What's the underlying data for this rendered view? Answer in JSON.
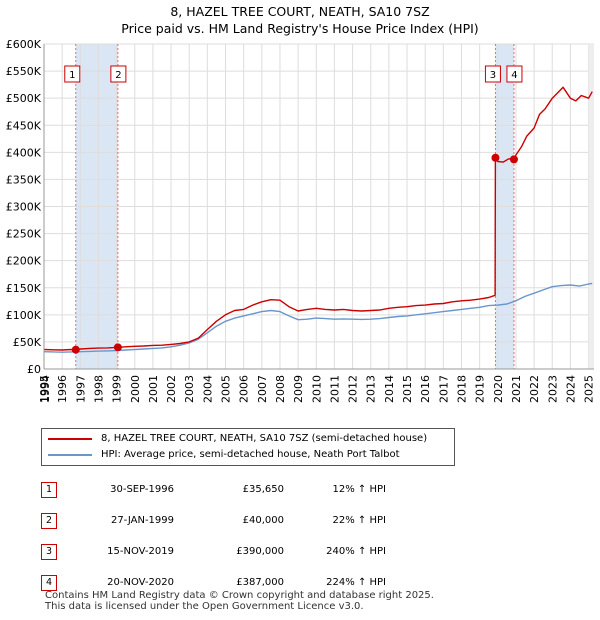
{
  "title_line1": "8, HAZEL TREE COURT, NEATH, SA10 7SZ",
  "title_line2": "Price paid vs. HM Land Registry's House Price Index (HPI)",
  "colors": {
    "property": "#cc0000",
    "hpi": "#6a96cc",
    "shade": "#dbe6f5",
    "vline": "#e07070",
    "grid": "#dddddd"
  },
  "chart_data": {
    "type": "line",
    "x_range": [
      1995.0,
      2025.3
    ],
    "ylim": [
      0,
      600000
    ],
    "y_ticks": [
      0,
      50000,
      100000,
      150000,
      200000,
      250000,
      300000,
      350000,
      400000,
      450000,
      500000,
      550000,
      600000
    ],
    "y_tick_labels": [
      "£0",
      "£50K",
      "£100K",
      "£150K",
      "£200K",
      "£250K",
      "£300K",
      "£350K",
      "£400K",
      "£450K",
      "£500K",
      "£550K",
      "£600K"
    ],
    "x_ticks": [
      1994,
      1995,
      1996,
      1997,
      1998,
      1999,
      2000,
      2001,
      2002,
      2003,
      2004,
      2005,
      2006,
      2007,
      2008,
      2009,
      2010,
      2011,
      2012,
      2013,
      2014,
      2015,
      2016,
      2017,
      2018,
      2019,
      2020,
      2021,
      2022,
      2023,
      2024,
      2025
    ],
    "shaded_spans": [
      [
        1996.75,
        1999.07
      ],
      [
        2019.87,
        2020.89
      ]
    ],
    "series": [
      {
        "name": "8, HAZEL TREE COURT, NEATH, SA10 7SZ (semi-detached house)",
        "x": [
          1995.0,
          1995.5,
          1996.0,
          1996.5,
          1996.75,
          1997.0,
          1997.5,
          1998.0,
          1998.5,
          1999.07,
          1999.5,
          2000.0,
          2000.5,
          2001.0,
          2001.5,
          2002.0,
          2002.5,
          2003.0,
          2003.5,
          2004.0,
          2004.5,
          2005.0,
          2005.5,
          2006.0,
          2006.5,
          2007.0,
          2007.5,
          2008.0,
          2008.5,
          2009.0,
          2009.5,
          2010.0,
          2010.5,
          2011.0,
          2011.5,
          2012.0,
          2012.5,
          2013.0,
          2013.5,
          2014.0,
          2014.5,
          2015.0,
          2015.5,
          2016.0,
          2016.5,
          2017.0,
          2017.5,
          2018.0,
          2018.5,
          2019.0,
          2019.5,
          2019.85,
          2019.87,
          2020.0,
          2020.3,
          2020.6,
          2020.89,
          2021.0,
          2021.3,
          2021.6,
          2022.0,
          2022.3,
          2022.6,
          2023.0,
          2023.3,
          2023.6,
          2024.0,
          2024.3,
          2024.6,
          2025.0,
          2025.2
        ],
        "values": [
          36000,
          35500,
          35000,
          36000,
          35650,
          37000,
          38000,
          38500,
          39000,
          40000,
          41000,
          42000,
          42500,
          43500,
          44000,
          45500,
          47000,
          50000,
          57000,
          73000,
          88000,
          100000,
          108000,
          110000,
          118000,
          124000,
          128000,
          127000,
          115000,
          107000,
          110000,
          112000,
          110000,
          109000,
          110000,
          108000,
          107000,
          108000,
          109000,
          112000,
          114000,
          115000,
          117000,
          118000,
          120000,
          121000,
          124000,
          126000,
          127000,
          129000,
          132000,
          136000,
          390000,
          383000,
          382000,
          388000,
          387000,
          395000,
          410000,
          430000,
          445000,
          470000,
          480000,
          500000,
          510000,
          520000,
          500000,
          495000,
          505000,
          500000,
          512000
        ]
      },
      {
        "name": "HPI: Average price, semi-detached house, Neath Port Talbot",
        "x": [
          1995.0,
          1995.5,
          1996.0,
          1996.5,
          1997.0,
          1997.5,
          1998.0,
          1998.5,
          1999.0,
          1999.5,
          2000.0,
          2000.5,
          2001.0,
          2001.5,
          2002.0,
          2002.5,
          2003.0,
          2003.5,
          2004.0,
          2004.5,
          2005.0,
          2005.5,
          2006.0,
          2006.5,
          2007.0,
          2007.5,
          2008.0,
          2008.5,
          2009.0,
          2009.5,
          2010.0,
          2010.5,
          2011.0,
          2011.5,
          2012.0,
          2012.5,
          2013.0,
          2013.5,
          2014.0,
          2014.5,
          2015.0,
          2015.5,
          2016.0,
          2016.5,
          2017.0,
          2017.5,
          2018.0,
          2018.5,
          2019.0,
          2019.5,
          2020.0,
          2020.5,
          2021.0,
          2021.5,
          2022.0,
          2022.5,
          2023.0,
          2023.5,
          2024.0,
          2024.5,
          2025.0,
          2025.2
        ],
        "values": [
          32000,
          31500,
          31000,
          31500,
          32000,
          32500,
          33000,
          33500,
          34000,
          35000,
          36000,
          37000,
          38000,
          39000,
          41000,
          44000,
          48000,
          55000,
          67000,
          79000,
          88000,
          94000,
          98000,
          102000,
          106000,
          108000,
          106000,
          98000,
          91000,
          92000,
          94000,
          93000,
          92000,
          92500,
          92000,
          91500,
          92000,
          93000,
          95000,
          97000,
          98000,
          100000,
          102000,
          104000,
          106000,
          108000,
          110000,
          112000,
          114000,
          117000,
          118000,
          120000,
          126000,
          134000,
          140000,
          146000,
          152000,
          154000,
          155000,
          153000,
          157000,
          158000
        ]
      }
    ],
    "sales": [
      {
        "label": "1",
        "x": 1996.75,
        "value": 35650
      },
      {
        "label": "2",
        "x": 1999.07,
        "value": 40000
      },
      {
        "label": "3",
        "x": 2019.87,
        "value": 390000
      },
      {
        "label": "4",
        "x": 2020.89,
        "value": 387000
      }
    ]
  },
  "legend": {
    "property_label": "8, HAZEL TREE COURT, NEATH, SA10 7SZ (semi-detached house)",
    "hpi_label": "HPI: Average price, semi-detached house, Neath Port Talbot"
  },
  "transactions": [
    {
      "num": "1",
      "date": "30-SEP-1996",
      "price": "£35,650",
      "hpi": "12% ↑ HPI"
    },
    {
      "num": "2",
      "date": "27-JAN-1999",
      "price": "£40,000",
      "hpi": "22% ↑ HPI"
    },
    {
      "num": "3",
      "date": "15-NOV-2019",
      "price": "£390,000",
      "hpi": "240% ↑ HPI"
    },
    {
      "num": "4",
      "date": "20-NOV-2020",
      "price": "£387,000",
      "hpi": "224% ↑ HPI"
    }
  ],
  "footer": {
    "line1": "Contains HM Land Registry data © Crown copyright and database right 2025.",
    "line2": "This data is licensed under the Open Government Licence v3.0."
  }
}
